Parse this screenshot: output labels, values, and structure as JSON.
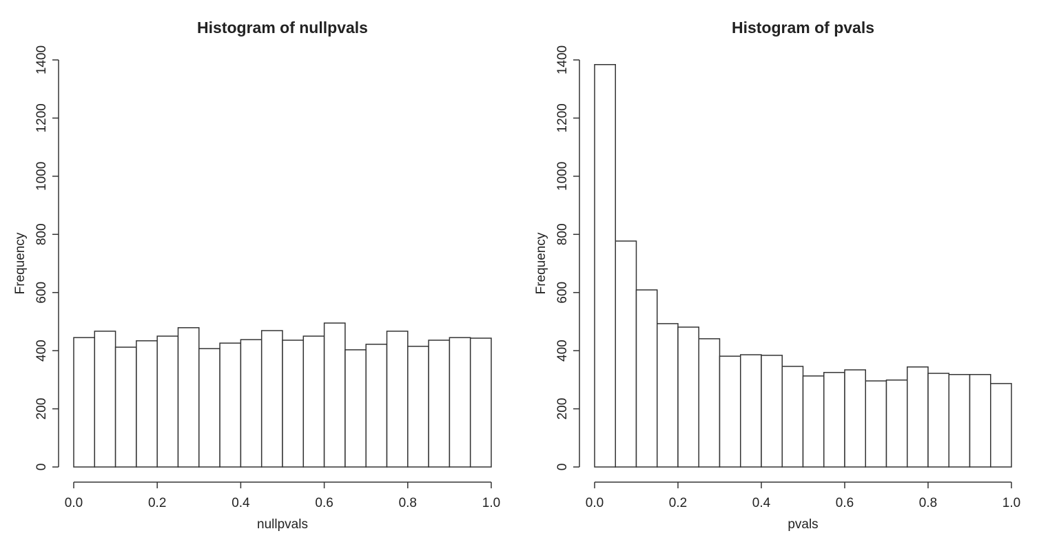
{
  "chart_data": [
    {
      "type": "histogram",
      "title": "Histogram of nullpvals",
      "xlabel": "nullpvals",
      "ylabel": "Frequency",
      "bins": [
        0,
        0.05,
        0.1,
        0.15,
        0.2,
        0.25,
        0.3,
        0.35,
        0.4,
        0.45,
        0.5,
        0.55,
        0.6,
        0.65,
        0.7,
        0.75,
        0.8,
        0.85,
        0.9,
        0.95,
        1
      ],
      "counts": [
        445,
        467,
        412,
        434,
        450,
        479,
        407,
        426,
        438,
        469,
        436,
        450,
        495,
        403,
        422,
        467,
        415,
        436,
        445,
        443
      ],
      "color": "#ffffff",
      "xlim": [
        0,
        1
      ],
      "ylim": [
        0,
        1400
      ],
      "xticks": [
        {
          "value": 0,
          "label": "0.0"
        },
        0.2,
        0.4,
        0.6,
        0.8,
        {
          "value": 1,
          "label": "1.0"
        }
      ],
      "yticks": [
        0,
        200,
        400,
        600,
        800,
        1000,
        1200,
        1400
      ]
    },
    {
      "type": "histogram",
      "title": "Histogram of pvals",
      "xlabel": "pvals",
      "ylabel": "Frequency",
      "bins": [
        0,
        0.05,
        0.1,
        0.15,
        0.2,
        0.25,
        0.3,
        0.35,
        0.4,
        0.45,
        0.5,
        0.55,
        0.6,
        0.65,
        0.7,
        0.75,
        0.8,
        0.85,
        0.9,
        0.95,
        1
      ],
      "counts": [
        1384,
        777,
        609,
        493,
        481,
        441,
        381,
        386,
        384,
        346,
        313,
        325,
        334,
        296,
        299,
        344,
        322,
        318,
        318,
        287
      ],
      "color": "#ffffff",
      "xlim": [
        0,
        1
      ],
      "ylim": [
        0,
        1400
      ],
      "xticks": [
        {
          "value": 0,
          "label": "0.0"
        },
        0.2,
        0.4,
        0.6,
        0.8,
        {
          "value": 1,
          "label": "1.0"
        }
      ],
      "yticks": [
        0,
        200,
        400,
        600,
        800,
        1000,
        1200,
        1400
      ]
    }
  ]
}
